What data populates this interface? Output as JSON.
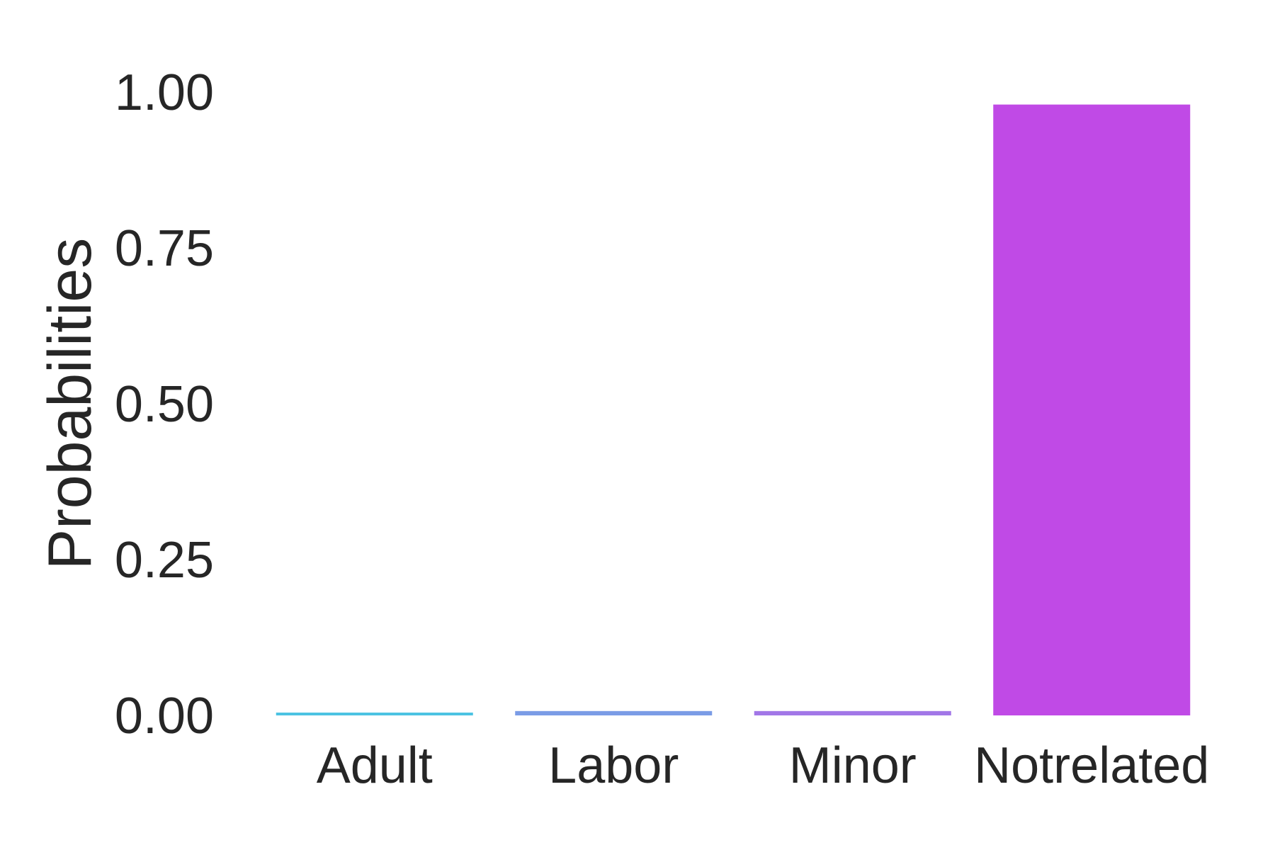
{
  "chart_data": {
    "type": "bar",
    "title": "",
    "xlabel": "",
    "ylabel": "Probabilities",
    "categories": [
      "Adult",
      "Labor",
      "Minor",
      "Notrelated"
    ],
    "values": [
      0.003,
      0.007,
      0.007,
      0.98
    ],
    "colors": [
      "#4cc3e2",
      "#7b9ce6",
      "#a277e7",
      "#c04ae6"
    ],
    "ylim": [
      0,
      1.0
    ],
    "yticks": [
      0.0,
      0.25,
      0.5,
      0.75,
      1.0
    ],
    "ytick_labels": [
      "0.00",
      "0.25",
      "0.50",
      "0.75",
      "1.00"
    ],
    "grid": false,
    "legend": "none"
  }
}
